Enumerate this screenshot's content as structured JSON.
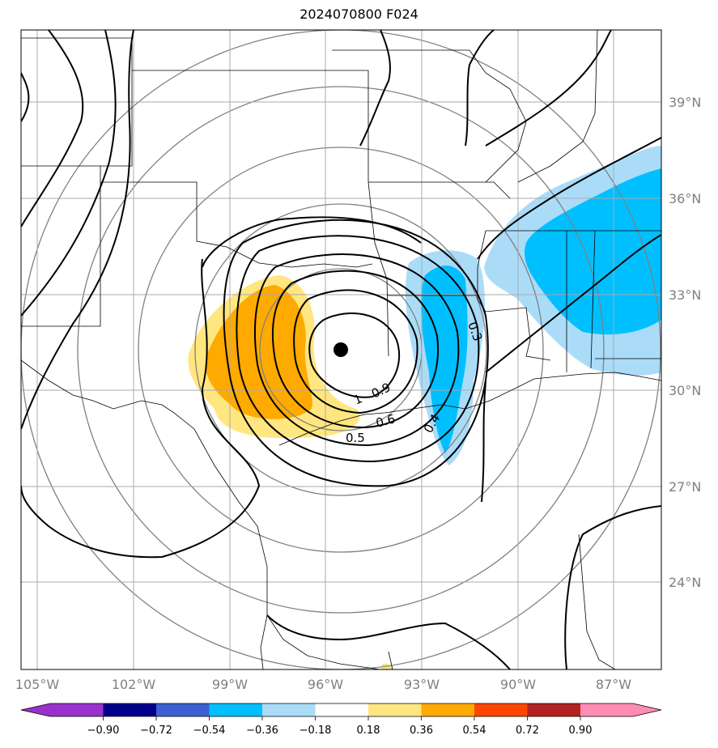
{
  "title": "2024070800 F024",
  "map": {
    "lon_labels": [
      "105°W",
      "102°W",
      "99°W",
      "96°W",
      "93°W",
      "90°W",
      "87°W"
    ],
    "lat_labels": [
      "39°N",
      "36°N",
      "33°N",
      "30°N",
      "27°N",
      "24°N"
    ],
    "contour_labels": [
      "0.9",
      "1",
      "0.6",
      "0.5",
      "0.4",
      "0.3"
    ],
    "center_marker": "storm-center",
    "colors": {
      "blue_light": "#aadcf8",
      "blue": "#00bfff",
      "yellow": "#ffe680",
      "orange": "#ffaa00",
      "contour": "#000000",
      "range_ring": "#808080",
      "grid": "#aaaaaa"
    }
  },
  "colorbar": {
    "ticks": [
      "−0.90",
      "−0.72",
      "−0.54",
      "−0.36",
      "−0.18",
      "0.18",
      "0.36",
      "0.54",
      "0.72",
      "0.90"
    ],
    "colors": [
      "#9932cc",
      "#00008b",
      "#3c5fd1",
      "#00bfff",
      "#aadcf8",
      "#ffffff",
      "#ffe680",
      "#ffaa00",
      "#ff4500",
      "#b22222",
      "#ff8cb4"
    ]
  }
}
